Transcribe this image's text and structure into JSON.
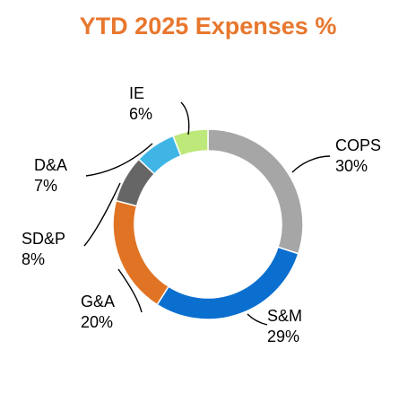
{
  "title": "YTD 2025 Expenses %",
  "colors": {
    "title": "#E8772E",
    "leader": "#000000"
  },
  "chart_data": {
    "type": "pie",
    "subtype": "donut",
    "title": "YTD 2025 Expenses %",
    "legend": "none",
    "slices": [
      {
        "label": "COPS",
        "value": 30,
        "value_label": "30%",
        "color": "#A6A6A6"
      },
      {
        "label": "S&M",
        "value": 29,
        "value_label": "29%",
        "color": "#0A6FCF"
      },
      {
        "label": "G&A",
        "value": 20,
        "value_label": "20%",
        "color": "#E07424"
      },
      {
        "label": "SD&P",
        "value": 8,
        "value_label": "8%",
        "color": "#FFFFFF"
      },
      {
        "label": "D&A",
        "value": 7,
        "value_label": "7%",
        "color": "#666666"
      },
      {
        "label": "IE",
        "value": 6,
        "value_label": "6%",
        "color": "#3EB5E5"
      },
      {
        "label": "",
        "value": 0,
        "value_label": "",
        "color": "#BDE87A"
      }
    ]
  }
}
